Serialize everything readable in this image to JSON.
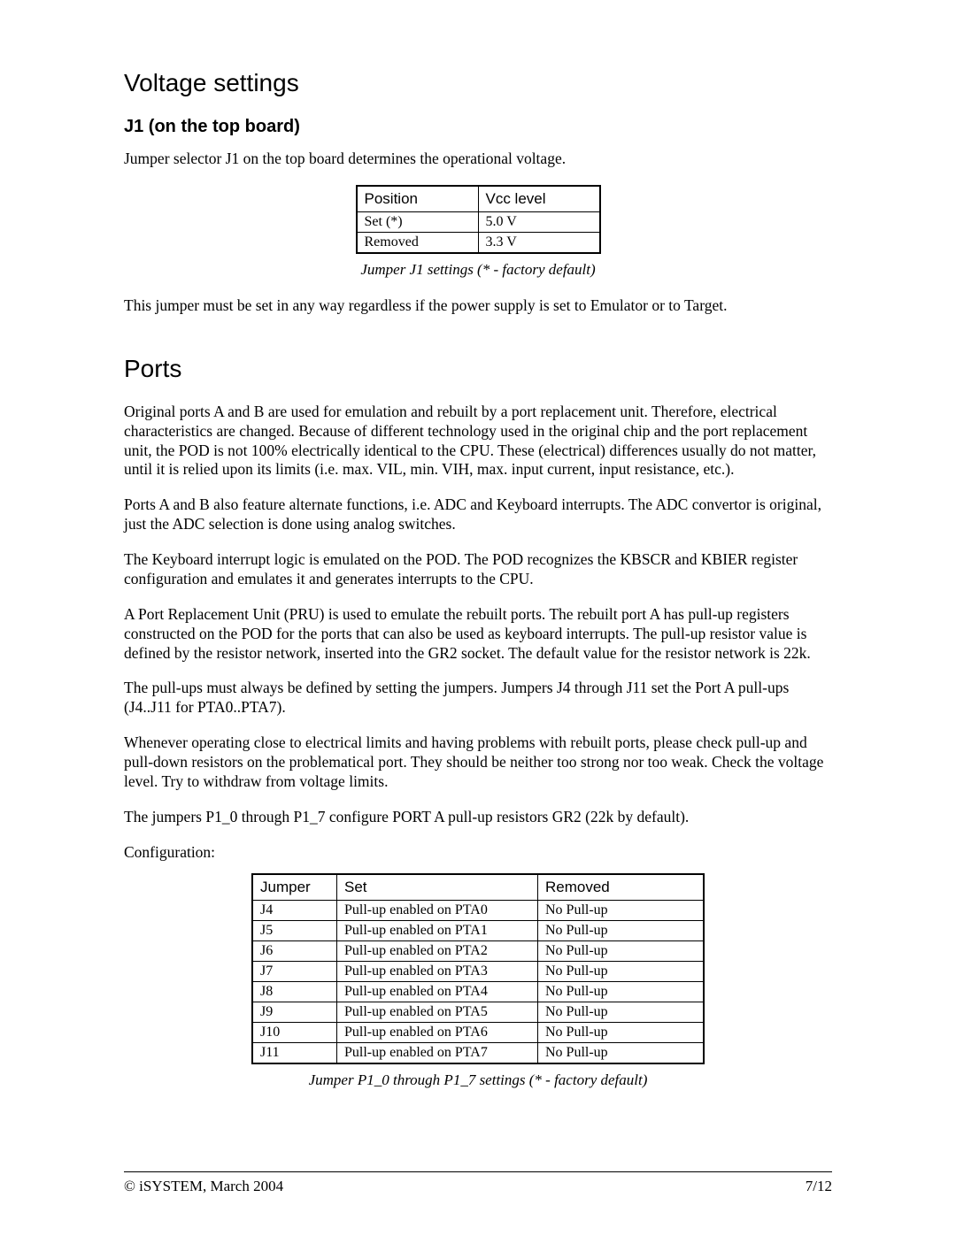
{
  "sections": {
    "voltage_title": "Voltage settings",
    "j1_title": "J1 (on the top board)",
    "j1_intro": "Jumper selector J1 on the top board determines the operational voltage.",
    "j1_note": "This jumper must be set in any way regardless if the power supply is set to Emulator or to Target.",
    "ports_title": "Ports",
    "ports_p1": "Original ports A and B are used for emulation and rebuilt by a port replacement unit. Therefore, electrical characteristics are changed. Because of different technology used in the original chip and the port replacement unit, the POD is not 100% electrically identical to the CPU. These (electrical) differences usually do not matter, until it is relied upon its limits (i.e. max. VIL, min. VIH, max. input current, input resistance, etc.).",
    "ports_p2": "Ports A and B also feature alternate functions, i.e. ADC and Keyboard interrupts. The ADC convertor is original, just the ADC selection is done using analog switches.",
    "ports_p3": "The Keyboard interrupt logic is emulated on the POD. The POD recognizes the KBSCR and KBIER register configuration and emulates it and generates interrupts to the CPU.",
    "ports_p4": "A Port Replacement Unit (PRU) is used to emulate the rebuilt ports. The rebuilt port A has pull-up registers constructed on the POD for the ports that can also be used as keyboard interrupts. The pull-up resistor value is defined by the resistor network, inserted into the GR2 socket. The default value for the resistor network is 22k.",
    "ports_p5": "The pull-ups must always be defined by setting the jumpers. Jumpers J4 through J11 set the Port A pull-ups (J4..J11 for PTA0..PTA7).",
    "ports_p6": "Whenever operating close to electrical limits and having problems with rebuilt ports, please check pull-up and pull-down resistors on the problematical port. They should be neither too strong nor too weak. Check the voltage level. Try to withdraw from voltage limits.",
    "ports_p7": "The jumpers P1_0 through P1_7 configure PORT A pull-up resistors GR2 (22k by default).",
    "config_label": "Configuration:"
  },
  "table1": {
    "columns": [
      "Position",
      "Vcc level"
    ],
    "rows": [
      [
        "Set (*)",
        "5.0 V"
      ],
      [
        "Removed",
        "3.3 V"
      ]
    ],
    "caption": "Jumper J1 settings (* - factory default)"
  },
  "table2": {
    "columns": [
      "Jumper",
      "Set",
      "Removed"
    ],
    "rows": [
      [
        "J4",
        "Pull-up enabled on PTA0",
        "No Pull-up"
      ],
      [
        "J5",
        "Pull-up enabled on PTA1",
        "No Pull-up"
      ],
      [
        "J6",
        "Pull-up enabled on PTA2",
        "No Pull-up"
      ],
      [
        "J7",
        "Pull-up enabled on PTA3",
        "No Pull-up"
      ],
      [
        "J8",
        "Pull-up enabled on PTA4",
        "No Pull-up"
      ],
      [
        "J9",
        "Pull-up enabled on PTA5",
        "No Pull-up"
      ],
      [
        "J10",
        "Pull-up enabled on PTA6",
        "No Pull-up"
      ],
      [
        "J11",
        "Pull-up enabled on PTA7",
        "No Pull-up"
      ]
    ],
    "caption": "Jumper P1_0 through P1_7 settings (* - factory default)"
  },
  "footer": {
    "left": "© iSYSTEM, March 2004",
    "right": "7/12"
  }
}
